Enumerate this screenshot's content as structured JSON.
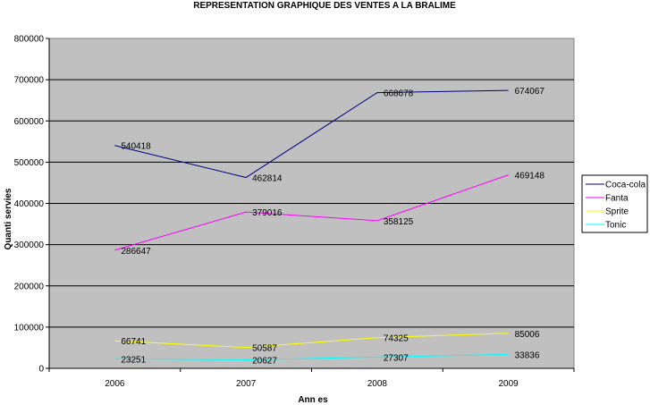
{
  "chart_data": {
    "type": "line",
    "title": "REPRESENTATION GRAPHIQUE DES VENTES A LA BRALIME",
    "xlabel": "Ann es",
    "ylabel": "Quanti servies",
    "categories": [
      "2006",
      "2007",
      "2008",
      "2009"
    ],
    "ylim": [
      0,
      800000
    ],
    "yticks": [
      0,
      100000,
      200000,
      300000,
      400000,
      500000,
      600000,
      700000,
      800000
    ],
    "grid": true,
    "legend_position": "right",
    "series": [
      {
        "name": "Coca-cola",
        "color": "#000080",
        "values": [
          540418,
          462814,
          668678,
          674067
        ]
      },
      {
        "name": "Fanta",
        "color": "#ff00ff",
        "values": [
          286647,
          379016,
          358125,
          469148
        ]
      },
      {
        "name": "Sprite",
        "color": "#ffff00",
        "values": [
          66741,
          50587,
          74325,
          85006
        ]
      },
      {
        "name": "Tonic",
        "color": "#00ffff",
        "values": [
          23251,
          20627,
          27307,
          33836
        ]
      }
    ]
  }
}
